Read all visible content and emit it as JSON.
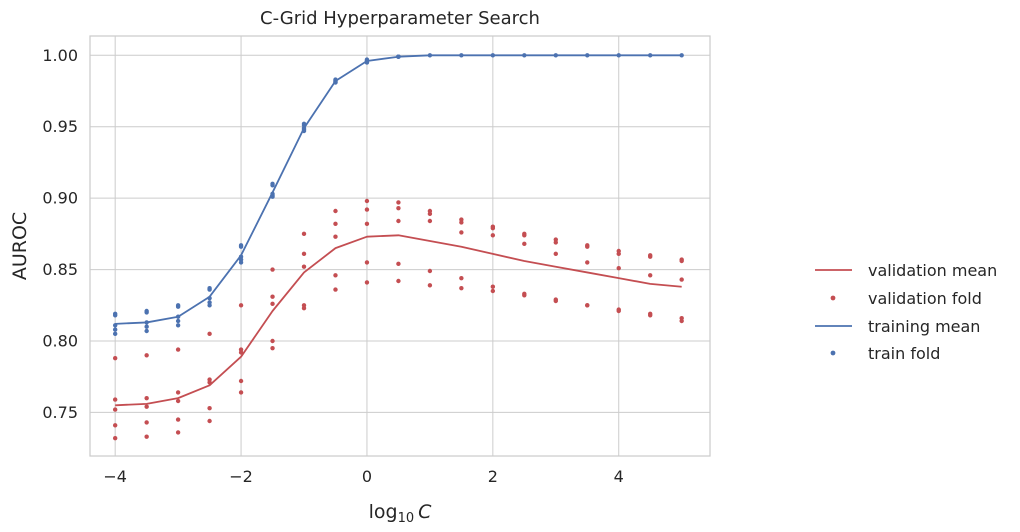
{
  "chart_data": {
    "type": "line",
    "title": "C-Grid Hyperparameter Search",
    "xlabel": "log",
    "xlabel_sub": "10",
    "xlabel_var": "C",
    "ylabel": "AUROC",
    "xlim": [
      -4.4,
      5.45
    ],
    "ylim": [
      0.7195,
      1.0135
    ],
    "xticks": [
      -4,
      -2,
      0,
      2,
      4
    ],
    "xtick_labels": [
      "−4",
      "−2",
      "0",
      "2",
      "4"
    ],
    "yticks": [
      0.75,
      0.8,
      0.85,
      0.9,
      0.95,
      1.0
    ],
    "ytick_labels": [
      "0.75",
      "0.80",
      "0.85",
      "0.90",
      "0.95",
      "1.00"
    ],
    "grid": true,
    "legend_position": "right",
    "colors": {
      "validation": "#c44e52",
      "training": "#4c72b0",
      "grid": "#cccccc",
      "axis": "#cccccc"
    },
    "x": [
      -4,
      -3.5,
      -3,
      -2.5,
      -2,
      -1.5,
      -1,
      -0.5,
      0,
      0.5,
      1,
      1.5,
      2,
      2.5,
      3,
      3.5,
      4,
      4.5,
      5
    ],
    "series": [
      {
        "name": "validation mean",
        "kind": "line",
        "color": "#c44e52",
        "values": [
          0.755,
          0.756,
          0.76,
          0.769,
          0.789,
          0.821,
          0.848,
          0.865,
          0.873,
          0.874,
          0.87,
          0.866,
          0.861,
          0.856,
          0.852,
          0.848,
          0.844,
          0.84,
          0.838
        ]
      },
      {
        "name": "validation fold",
        "kind": "points",
        "color": "#c44e52",
        "points": [
          [
            -4,
            0.788
          ],
          [
            -4,
            0.759
          ],
          [
            -4,
            0.752
          ],
          [
            -4,
            0.741
          ],
          [
            -4,
            0.732
          ],
          [
            -3.5,
            0.79
          ],
          [
            -3.5,
            0.76
          ],
          [
            -3.5,
            0.754
          ],
          [
            -3.5,
            0.743
          ],
          [
            -3.5,
            0.733
          ],
          [
            -3,
            0.794
          ],
          [
            -3,
            0.764
          ],
          [
            -3,
            0.758
          ],
          [
            -3,
            0.745
          ],
          [
            -3,
            0.736
          ],
          [
            -2.5,
            0.805
          ],
          [
            -2.5,
            0.773
          ],
          [
            -2.5,
            0.771
          ],
          [
            -2.5,
            0.753
          ],
          [
            -2.5,
            0.744
          ],
          [
            -2,
            0.825
          ],
          [
            -2,
            0.794
          ],
          [
            -2,
            0.792
          ],
          [
            -2,
            0.772
          ],
          [
            -2,
            0.764
          ],
          [
            -1.5,
            0.85
          ],
          [
            -1.5,
            0.831
          ],
          [
            -1.5,
            0.826
          ],
          [
            -1.5,
            0.8
          ],
          [
            -1.5,
            0.795
          ],
          [
            -1,
            0.875
          ],
          [
            -1,
            0.861
          ],
          [
            -1,
            0.852
          ],
          [
            -1,
            0.825
          ],
          [
            -1,
            0.823
          ],
          [
            -0.5,
            0.891
          ],
          [
            -0.5,
            0.882
          ],
          [
            -0.5,
            0.873
          ],
          [
            -0.5,
            0.846
          ],
          [
            -0.5,
            0.836
          ],
          [
            0,
            0.898
          ],
          [
            0,
            0.892
          ],
          [
            0,
            0.882
          ],
          [
            0,
            0.855
          ],
          [
            0,
            0.841
          ],
          [
            0.5,
            0.897
          ],
          [
            0.5,
            0.893
          ],
          [
            0.5,
            0.884
          ],
          [
            0.5,
            0.854
          ],
          [
            0.5,
            0.842
          ],
          [
            1,
            0.891
          ],
          [
            1,
            0.889
          ],
          [
            1,
            0.884
          ],
          [
            1,
            0.849
          ],
          [
            1,
            0.839
          ],
          [
            1.5,
            0.885
          ],
          [
            1.5,
            0.883
          ],
          [
            1.5,
            0.876
          ],
          [
            1.5,
            0.844
          ],
          [
            1.5,
            0.837
          ],
          [
            2,
            0.88
          ],
          [
            2,
            0.879
          ],
          [
            2,
            0.874
          ],
          [
            2,
            0.838
          ],
          [
            2,
            0.835
          ],
          [
            2.5,
            0.875
          ],
          [
            2.5,
            0.874
          ],
          [
            2.5,
            0.868
          ],
          [
            2.5,
            0.833
          ],
          [
            2.5,
            0.832
          ],
          [
            3,
            0.871
          ],
          [
            3,
            0.869
          ],
          [
            3,
            0.861
          ],
          [
            3,
            0.829
          ],
          [
            3,
            0.828
          ],
          [
            3.5,
            0.867
          ],
          [
            3.5,
            0.866
          ],
          [
            3.5,
            0.855
          ],
          [
            3.5,
            0.825
          ],
          [
            3.5,
            0.825
          ],
          [
            4,
            0.863
          ],
          [
            4,
            0.861
          ],
          [
            4,
            0.851
          ],
          [
            4,
            0.822
          ],
          [
            4,
            0.821
          ],
          [
            4.5,
            0.86
          ],
          [
            4.5,
            0.859
          ],
          [
            4.5,
            0.846
          ],
          [
            4.5,
            0.819
          ],
          [
            4.5,
            0.818
          ],
          [
            5,
            0.857
          ],
          [
            5,
            0.856
          ],
          [
            5,
            0.843
          ],
          [
            5,
            0.816
          ],
          [
            5,
            0.814
          ]
        ]
      },
      {
        "name": "training mean",
        "kind": "line",
        "color": "#4c72b0",
        "values": [
          0.812,
          0.813,
          0.817,
          0.831,
          0.86,
          0.904,
          0.949,
          0.982,
          0.996,
          0.999,
          1.0,
          1.0,
          1.0,
          1.0,
          1.0,
          1.0,
          1.0,
          1.0,
          1.0
        ]
      },
      {
        "name": "train fold",
        "kind": "points",
        "color": "#4c72b0",
        "points": [
          [
            -4,
            0.819
          ],
          [
            -4,
            0.818
          ],
          [
            -4,
            0.811
          ],
          [
            -4,
            0.808
          ],
          [
            -4,
            0.805
          ],
          [
            -3.5,
            0.821
          ],
          [
            -3.5,
            0.82
          ],
          [
            -3.5,
            0.813
          ],
          [
            -3.5,
            0.81
          ],
          [
            -3.5,
            0.807
          ],
          [
            -3,
            0.825
          ],
          [
            -3,
            0.824
          ],
          [
            -3,
            0.817
          ],
          [
            -3,
            0.814
          ],
          [
            -3,
            0.811
          ],
          [
            -2.5,
            0.837
          ],
          [
            -2.5,
            0.836
          ],
          [
            -2.5,
            0.83
          ],
          [
            -2.5,
            0.827
          ],
          [
            -2.5,
            0.825
          ],
          [
            -2,
            0.867
          ],
          [
            -2,
            0.866
          ],
          [
            -2,
            0.859
          ],
          [
            -2,
            0.857
          ],
          [
            -2,
            0.855
          ],
          [
            -1.5,
            0.91
          ],
          [
            -1.5,
            0.909
          ],
          [
            -1.5,
            0.903
          ],
          [
            -1.5,
            0.902
          ],
          [
            -1.5,
            0.901
          ],
          [
            -1,
            0.952
          ],
          [
            -1,
            0.951
          ],
          [
            -1,
            0.949
          ],
          [
            -1,
            0.948
          ],
          [
            -1,
            0.947
          ],
          [
            -0.5,
            0.983
          ],
          [
            -0.5,
            0.982
          ],
          [
            -0.5,
            0.982
          ],
          [
            -0.5,
            0.981
          ],
          [
            -0.5,
            0.981
          ],
          [
            0,
            0.997
          ],
          [
            0,
            0.996
          ],
          [
            0,
            0.996
          ],
          [
            0,
            0.995
          ],
          [
            0,
            0.995
          ],
          [
            0.5,
            0.999
          ],
          [
            0.5,
            0.999
          ],
          [
            0.5,
            0.999
          ],
          [
            0.5,
            0.999
          ],
          [
            0.5,
            0.999
          ],
          [
            1,
            1.0
          ],
          [
            1.5,
            1.0
          ],
          [
            2,
            1.0
          ],
          [
            2.5,
            1.0
          ],
          [
            3,
            1.0
          ],
          [
            3.5,
            1.0
          ],
          [
            4,
            1.0
          ],
          [
            4.5,
            1.0
          ],
          [
            5,
            1.0
          ]
        ]
      }
    ]
  }
}
